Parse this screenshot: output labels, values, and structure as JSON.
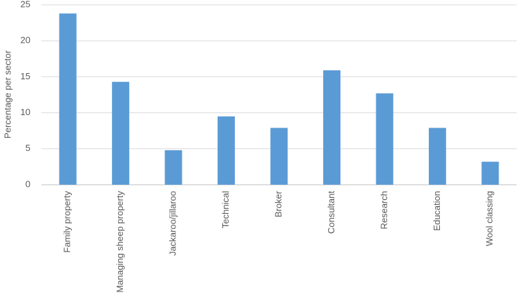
{
  "chart_data": {
    "type": "bar",
    "y_label": "Percentage per sector",
    "categories": [
      "Family property",
      "Managing sheep property",
      "Jackaroo/jillaroo",
      "Technical",
      "Broker",
      "Consultant",
      "Research",
      "Education",
      "Wool classing"
    ],
    "values": [
      23.8,
      14.3,
      4.8,
      9.5,
      7.9,
      15.9,
      12.7,
      7.9,
      3.2
    ],
    "color": "#5b9bd5",
    "ylim": [
      0,
      25
    ],
    "yticks": [
      0,
      5,
      10,
      15,
      20,
      25
    ],
    "grid": true
  }
}
